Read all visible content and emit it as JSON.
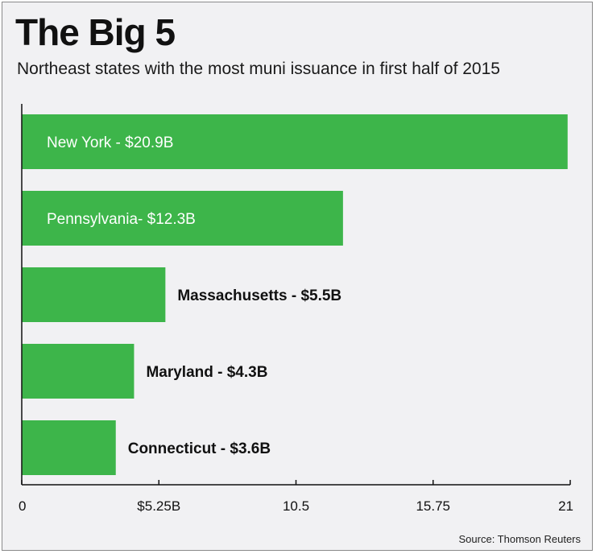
{
  "chart_data": {
    "type": "bar",
    "orientation": "horizontal",
    "title": "The Big 5",
    "subtitle": "Northeast states with the most muni issuance in first half of 2015",
    "source": "Source: Thomson Reuters",
    "categories": [
      "New York",
      "Pennsylvania",
      "Massachusetts",
      "Maryland",
      "Connecticut"
    ],
    "values": [
      20.9,
      12.3,
      5.5,
      4.3,
      3.6
    ],
    "data_labels": [
      "New York - $20.9B",
      "Pennsylvania- $12.3B",
      "Massachusetts - $5.5B",
      "Maryland - $4.3B",
      "Connecticut - $3.6B"
    ],
    "label_inside_bar": [
      true,
      true,
      false,
      false,
      false
    ],
    "xlim": [
      0,
      21
    ],
    "xticks": [
      0,
      5.25,
      10.5,
      15.75,
      21
    ],
    "xtick_labels": [
      "0",
      "$5.25B",
      "10.5",
      "15.75",
      "21"
    ],
    "grid": false,
    "colors": {
      "bar": "#3db54a",
      "inside_label": "#ffffff",
      "outside_label": "#111111",
      "background": "#f1f1f3"
    }
  }
}
